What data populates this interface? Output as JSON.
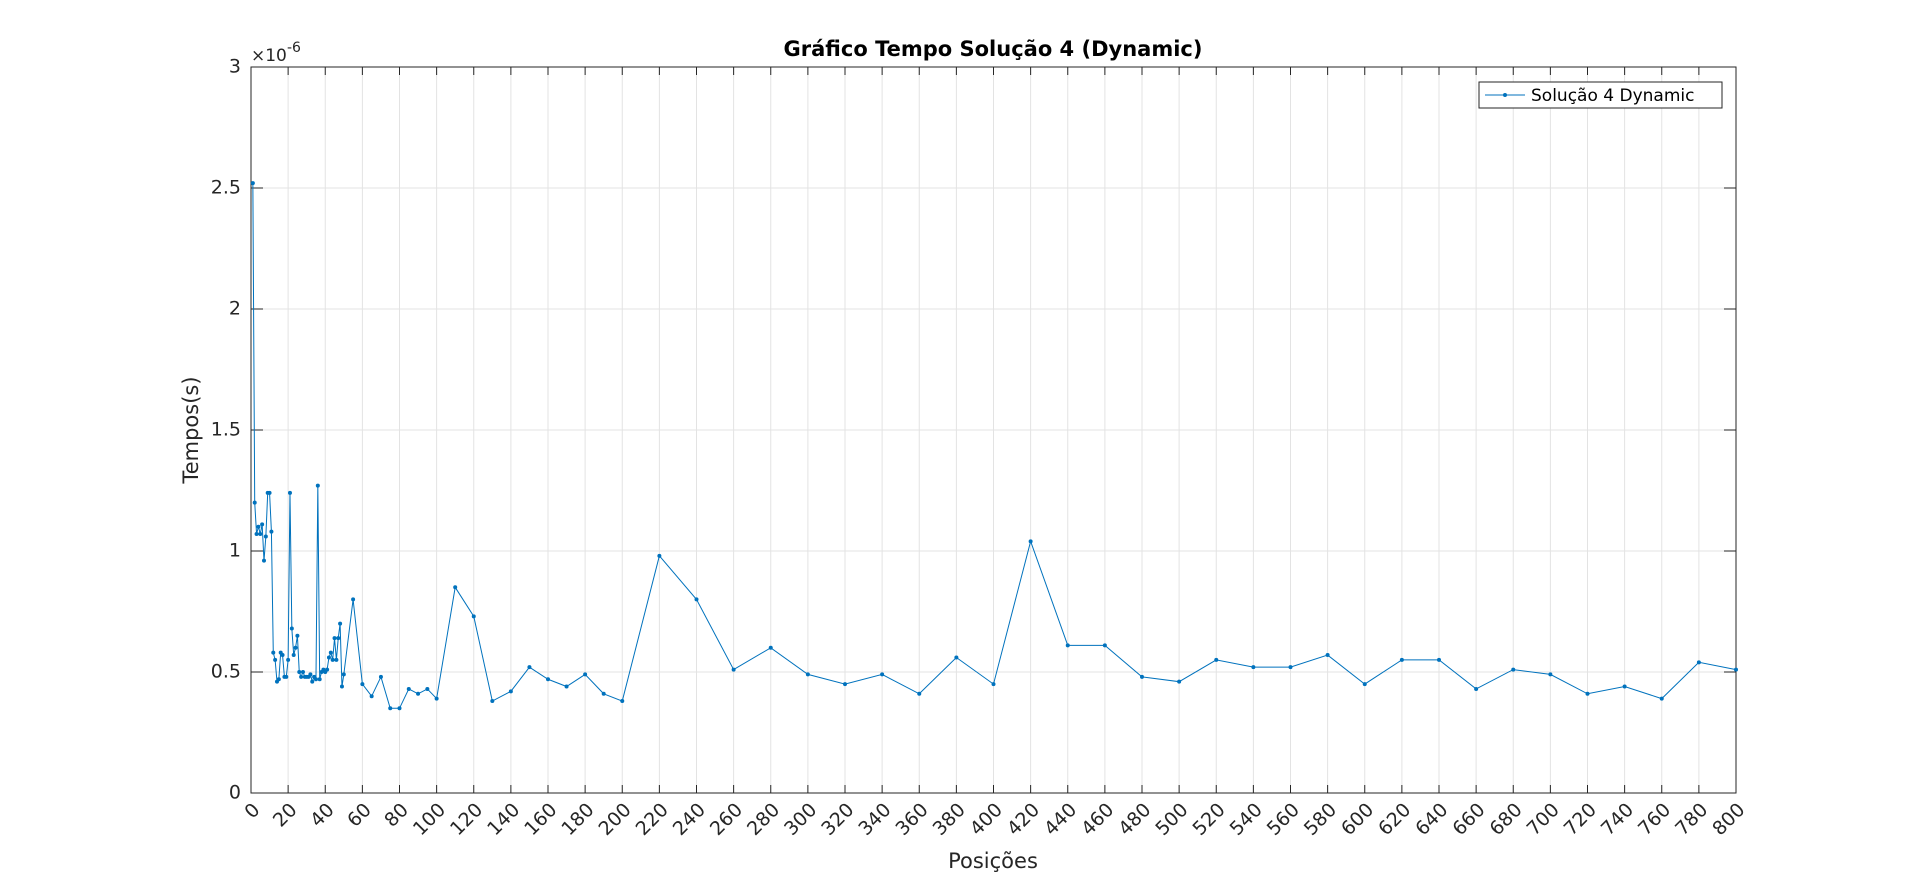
{
  "chart_data": {
    "type": "line",
    "title": "Gráfico Tempo Solução 4 (Dynamic)",
    "x_label": "Posições",
    "y_label": "Tempos(s)",
    "y_scale_base": "×10",
    "y_scale_exponent": "-6",
    "x": [
      1,
      2,
      3,
      4,
      5,
      6,
      7,
      8,
      9,
      10,
      11,
      12,
      13,
      14,
      15,
      16,
      17,
      18,
      19,
      20,
      21,
      22,
      23,
      24,
      25,
      26,
      27,
      28,
      29,
      30,
      31,
      32,
      33,
      34,
      35,
      36,
      37,
      38,
      39,
      40,
      41,
      42,
      43,
      44,
      45,
      46,
      47,
      48,
      49,
      50,
      55,
      60,
      65,
      70,
      75,
      80,
      85,
      90,
      95,
      100,
      110,
      120,
      130,
      140,
      150,
      160,
      170,
      180,
      190,
      200,
      220,
      240,
      260,
      280,
      300,
      320,
      340,
      360,
      380,
      400,
      420,
      440,
      460,
      480,
      500,
      520,
      540,
      560,
      580,
      600,
      620,
      640,
      660,
      680,
      700,
      720,
      740,
      760,
      780,
      800
    ],
    "series": [
      {
        "name": "Solução 4 Dynamic",
        "color": "#0072bd",
        "values": [
          2.52,
          1.2,
          1.07,
          1.1,
          1.07,
          1.11,
          0.96,
          1.06,
          1.24,
          1.24,
          1.08,
          0.58,
          0.55,
          0.46,
          0.47,
          0.58,
          0.57,
          0.48,
          0.48,
          0.55,
          1.24,
          0.68,
          0.57,
          0.6,
          0.65,
          0.5,
          0.48,
          0.5,
          0.48,
          0.48,
          0.48,
          0.49,
          0.46,
          0.48,
          0.47,
          1.27,
          0.47,
          0.5,
          0.51,
          0.5,
          0.51,
          0.56,
          0.58,
          0.55,
          0.64,
          0.55,
          0.64,
          0.7,
          0.44,
          0.49,
          0.8,
          0.45,
          0.4,
          0.48,
          0.35,
          0.35,
          0.43,
          0.41,
          0.43,
          0.39,
          0.85,
          0.73,
          0.38,
          0.42,
          0.52,
          0.47,
          0.44,
          0.49,
          0.41,
          0.38,
          0.98,
          0.8,
          0.51,
          0.6,
          0.49,
          0.45,
          0.49,
          0.41,
          0.56,
          0.45,
          1.04,
          0.61,
          0.61,
          0.48,
          0.46,
          0.55,
          0.52,
          0.52,
          0.57,
          0.45,
          0.55,
          0.55,
          0.43,
          0.51,
          0.49,
          0.41,
          0.44,
          0.39,
          0.54,
          0.51
        ]
      }
    ],
    "xlim": [
      0,
      800
    ],
    "xticks": [
      0,
      20,
      40,
      60,
      80,
      100,
      120,
      140,
      160,
      180,
      200,
      220,
      240,
      260,
      280,
      300,
      320,
      340,
      360,
      380,
      400,
      420,
      440,
      460,
      480,
      500,
      520,
      540,
      560,
      580,
      600,
      620,
      640,
      660,
      680,
      700,
      720,
      740,
      760,
      780,
      800
    ],
    "ylim": [
      0,
      3
    ],
    "yticks": [
      0,
      0.5,
      1,
      1.5,
      2,
      2.5,
      3
    ],
    "grid": true,
    "legend_position": "northeast"
  }
}
